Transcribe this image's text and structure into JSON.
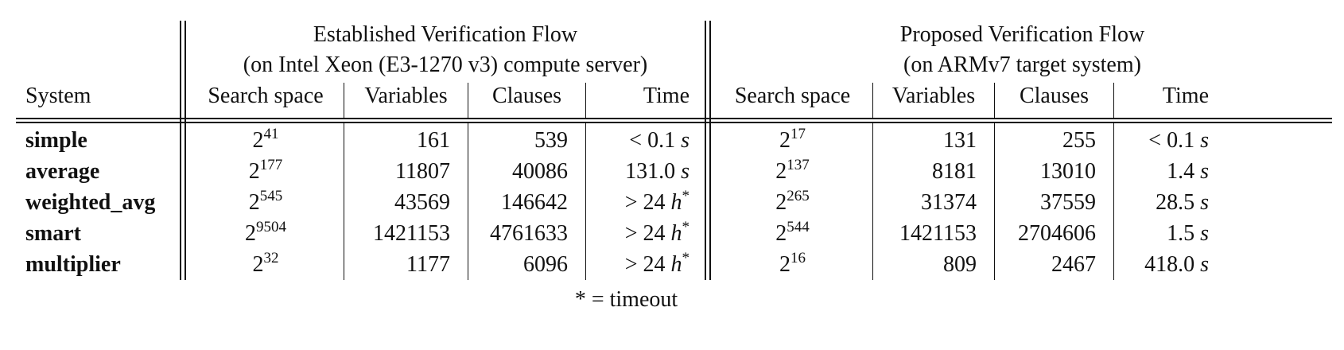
{
  "header": {
    "established_title": "Established Verification Flow",
    "established_sub": "(on Intel Xeon (E3-1270 v3) compute server)",
    "proposed_title": "Proposed Verification Flow",
    "proposed_sub": "(on ARMv7 target system)",
    "system": "System",
    "search_space": "Search space",
    "variables": "Variables",
    "clauses": "Clauses",
    "time": "Time"
  },
  "rows": [
    {
      "system": "simple",
      "est": {
        "exp": "41",
        "variables": "161",
        "clauses": "539",
        "time_prefix": "< 0.1",
        "time_unit": "s",
        "time_mark": ""
      },
      "prop": {
        "exp": "17",
        "variables": "131",
        "clauses": "255",
        "time_prefix": "< 0.1",
        "time_unit": "s",
        "time_mark": ""
      }
    },
    {
      "system": "average",
      "est": {
        "exp": "177",
        "variables": "11807",
        "clauses": "40086",
        "time_prefix": "131.0",
        "time_unit": "s",
        "time_mark": ""
      },
      "prop": {
        "exp": "137",
        "variables": "8181",
        "clauses": "13010",
        "time_prefix": "1.4",
        "time_unit": "s",
        "time_mark": ""
      }
    },
    {
      "system": "weighted_avg",
      "est": {
        "exp": "545",
        "variables": "43569",
        "clauses": "146642",
        "time_prefix": "> 24",
        "time_unit": "h",
        "time_mark": "*"
      },
      "prop": {
        "exp": "265",
        "variables": "31374",
        "clauses": "37559",
        "time_prefix": "28.5",
        "time_unit": "s",
        "time_mark": ""
      }
    },
    {
      "system": "smart",
      "est": {
        "exp": "9504",
        "variables": "1421153",
        "clauses": "4761633",
        "time_prefix": "> 24",
        "time_unit": "h",
        "time_mark": "*"
      },
      "prop": {
        "exp": "544",
        "variables": "1421153",
        "clauses": "2704606",
        "time_prefix": "1.5",
        "time_unit": "s",
        "time_mark": ""
      }
    },
    {
      "system": "multiplier",
      "est": {
        "exp": "32",
        "variables": "1177",
        "clauses": "6096",
        "time_prefix": "> 24",
        "time_unit": "h",
        "time_mark": "*"
      },
      "prop": {
        "exp": "16",
        "variables": "809",
        "clauses": "2467",
        "time_prefix": "418.0",
        "time_unit": "s",
        "time_mark": ""
      }
    }
  ],
  "base": "2",
  "footnote": "* = timeout"
}
